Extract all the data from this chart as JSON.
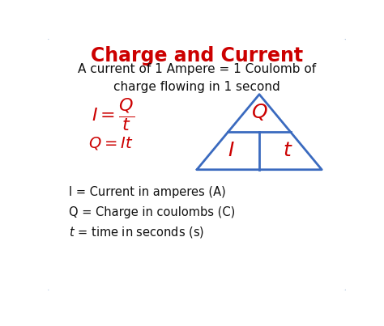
{
  "title": "Charge and Current",
  "title_color": "#cc0000",
  "title_fontsize": 17,
  "subtitle": "A current of 1 Ampere = 1 Coulomb of\ncharge flowing in 1 second",
  "subtitle_color": "#111111",
  "subtitle_fontsize": 11,
  "formula1": "$I = \\dfrac{Q}{t}$",
  "formula2": "$Q = It$",
  "formula_color": "#cc0000",
  "formula1_fontsize": 16,
  "formula2_fontsize": 14,
  "legend1": "I = Current in amperes (A)",
  "legend2": "Q = Charge in coulombs (C)",
  "legend3": "$t$ = time in seconds (s)",
  "legend_color": "#111111",
  "legend_fontsize": 10.5,
  "triangle_color": "#3a6abf",
  "triangle_label_Q": "$Q$",
  "triangle_label_I": "$I$",
  "triangle_label_t": "$t$",
  "triangle_label_color": "#cc0000",
  "triangle_label_fontsize": 18,
  "background_color": "#ffffff",
  "border_color": "#b0c4de"
}
